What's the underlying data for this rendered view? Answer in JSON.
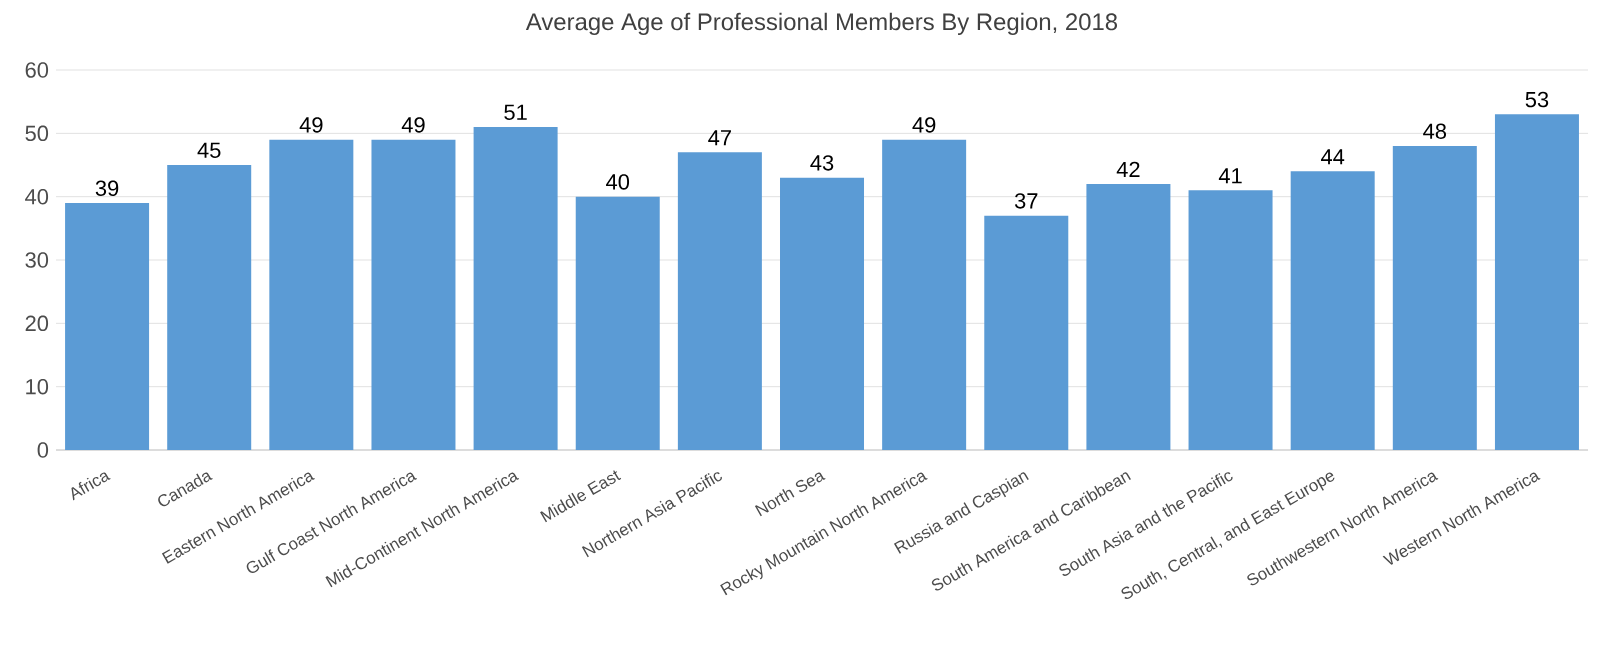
{
  "chart_data": {
    "type": "bar",
    "title": "Average Age of Professional Members By Region, 2018",
    "categories": [
      "Africa",
      "Canada",
      "Eastern North America",
      "Gulf Coast North America",
      "Mid-Continent North America",
      "Middle East",
      "Northern Asia Pacific",
      "North Sea",
      "Rocky Mountain North America",
      "Russia and Caspian",
      "South America and Caribbean",
      "South Asia and the Pacific",
      "South, Central, and East Europe",
      "Southwestern North America",
      "Western North America"
    ],
    "values": [
      39,
      45,
      49,
      49,
      51,
      40,
      47,
      43,
      49,
      37,
      42,
      41,
      44,
      48,
      53
    ],
    "color": "#5b9bd5",
    "ylim": [
      0,
      60
    ],
    "yticks": [
      0,
      10,
      20,
      30,
      40,
      50,
      60
    ],
    "grid": "y",
    "data_labels": true
  }
}
